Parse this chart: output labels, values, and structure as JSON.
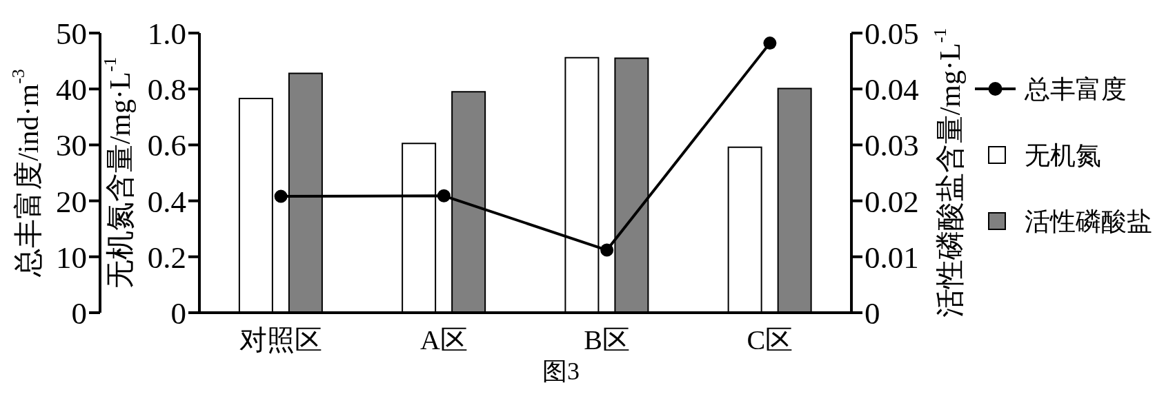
{
  "chart_data": {
    "type": "bar",
    "annotations": [
      "图3"
    ],
    "categories": [
      "对照区",
      "A区",
      "B区",
      "C区"
    ],
    "ylabel": "无机氮含量/mg·L$^{-1}$",
    "y2label": "活性磷酸盐含量/mg·L$^{-1}$",
    "y3label": "总丰富度/ind·m$^{-3}$",
    "ylim": [
      0,
      1
    ],
    "yticks": [
      0,
      0.2,
      0.4,
      0.6,
      0.8,
      {
        "value": 1,
        "label": "1.0"
      }
    ],
    "y2lim": [
      0,
      0.05
    ],
    "y2ticks": [
      0,
      0.01,
      0.02,
      0.03,
      0.04,
      0.05
    ],
    "y3lim": [
      0,
      50
    ],
    "y3ticks": [
      0,
      10,
      20,
      30,
      40,
      50
    ],
    "series": [
      {
        "name": "总丰富度",
        "type": "line",
        "axis": "y3",
        "color": "#000000",
        "values": [
          20.8,
          20.9,
          11.2,
          48.2
        ]
      },
      {
        "name": "无机氮",
        "color": "#ffffff",
        "values": [
          0.766,
          0.605,
          0.912,
          0.592
        ]
      },
      {
        "name": "活性磷酸盐",
        "axis": "y2",
        "color": "#808080",
        "values": [
          0.0428,
          0.0395,
          0.0455,
          0.0401
        ]
      }
    ],
    "marker": "circle",
    "legend": "right"
  }
}
